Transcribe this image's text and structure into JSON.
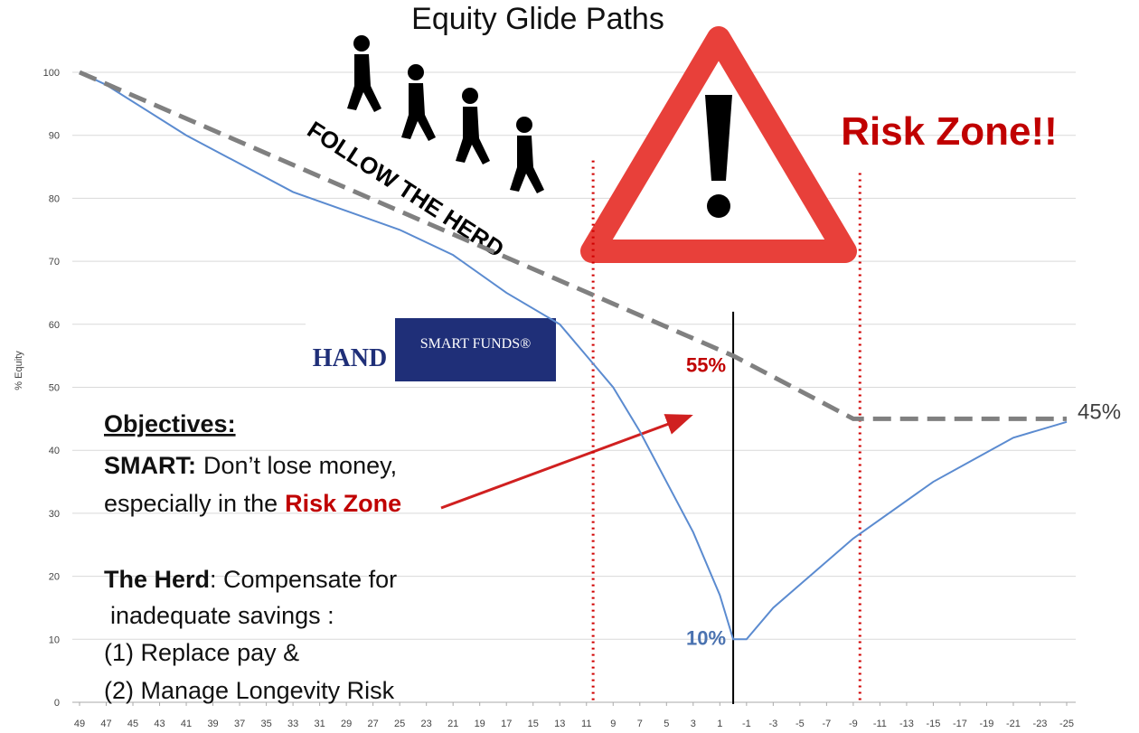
{
  "chart_data": {
    "type": "line",
    "title": "Equity Glide Paths",
    "ylabel": "% Equity",
    "xlim": [
      49,
      -25
    ],
    "xticks": [
      49,
      47,
      45,
      43,
      41,
      39,
      37,
      35,
      33,
      31,
      29,
      27,
      25,
      23,
      21,
      19,
      17,
      15,
      13,
      11,
      9,
      7,
      5,
      3,
      1,
      -1,
      -3,
      -5,
      -7,
      -9,
      -11,
      -13,
      -15,
      -17,
      -19,
      -21,
      -23,
      -25
    ],
    "ylim": [
      0,
      100
    ],
    "yticks": [
      0,
      10,
      20,
      30,
      40,
      50,
      60,
      70,
      80,
      90,
      100
    ],
    "grid": true,
    "series": [
      {
        "color": "#5b8bd0",
        "style": "solid",
        "x": [
          49,
          47,
          41,
          33,
          25,
          21,
          17,
          13,
          11,
          9,
          7,
          5,
          3,
          1,
          0,
          -1,
          -3,
          -9,
          -15,
          -21,
          -25
        ],
        "values": [
          100,
          98,
          90,
          81,
          75,
          71,
          65,
          60,
          55,
          50,
          43,
          35,
          27,
          17,
          10,
          10,
          15,
          26,
          35,
          42,
          44.5
        ],
        "value_labels": [
          null,
          null,
          null,
          null,
          null,
          null,
          null,
          null,
          null,
          null,
          null,
          null,
          null,
          null,
          "10%",
          null,
          null,
          null,
          null,
          null,
          null
        ],
        "value_label_colors": [
          null,
          null,
          null,
          null,
          null,
          null,
          null,
          null,
          null,
          null,
          null,
          null,
          null,
          null,
          "#4a72b0",
          null,
          null,
          null,
          null,
          null,
          null
        ]
      },
      {
        "color": "#808080",
        "style": "dashed",
        "x": [
          49,
          0,
          -9,
          -25
        ],
        "values": [
          100,
          55,
          45,
          45
        ],
        "value_labels": [
          null,
          "55%",
          null,
          "45%"
        ],
        "value_label_colors": [
          null,
          "#c00000",
          null,
          "#404040"
        ]
      }
    ],
    "vlines": [
      {
        "x": 10.5,
        "top": 86,
        "color": "#d00000",
        "style": "dotted"
      },
      {
        "x": -9.5,
        "top": 84,
        "color": "#d00000",
        "style": "dotted"
      },
      {
        "x": 0,
        "top": 62,
        "color": "#000000",
        "style": "solid"
      }
    ],
    "annotations": {
      "risk_zone": "Risk Zone!!",
      "follow": "FOLLOW THE HERD",
      "logo_hand": "HAND",
      "logo_smart": "SMART FUNDS®",
      "heading": "Objectives:",
      "smart_label": "SMART:",
      "smart_text": "Don’t lose money,",
      "smart_text2": "especially in the",
      "smart_highlight": "Risk Zone",
      "herd_label": "The Herd",
      "herd_text": ": Compensate for",
      "herd_text2": "inadequate savings :",
      "item1": "(1)  Replace pay &",
      "item2": "(2)  Manage Longevity Risk"
    }
  }
}
